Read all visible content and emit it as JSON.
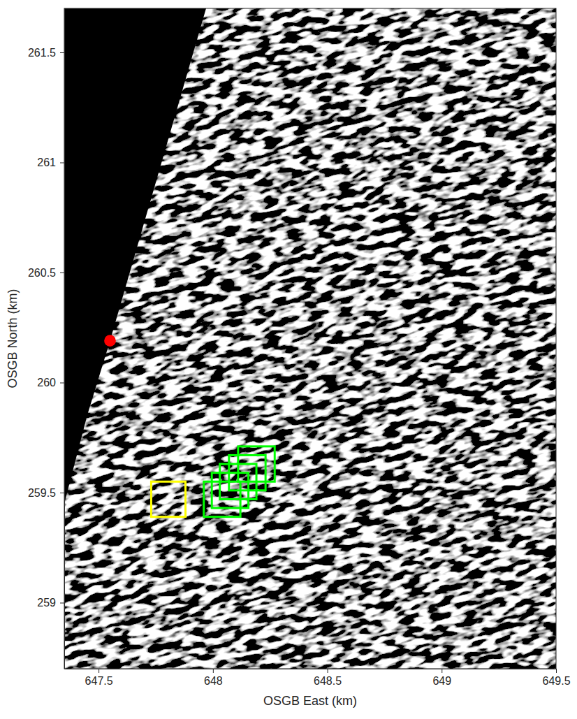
{
  "chart_data": {
    "type": "image",
    "xlabel": "OSGB East (km)",
    "ylabel": "OSGB North (km)",
    "xlim": [
      647.35,
      649.5
    ],
    "ylim": [
      258.7,
      261.7
    ],
    "xticks": [
      647.5,
      648,
      648.5,
      649,
      649.5
    ],
    "yticks": [
      259,
      259.5,
      260,
      260.5,
      261,
      261.5
    ],
    "grid": false,
    "no_data_region": {
      "x": [
        647.35,
        647.97,
        647.55,
        647.45,
        647.35
      ],
      "y": [
        261.7,
        261.7,
        260.19,
        259.85,
        259.45
      ],
      "color": "#000000"
    },
    "points": [
      {
        "x": 647.55,
        "y": 260.19,
        "color": "#ff0000",
        "marker": "circle"
      }
    ],
    "boxes": [
      {
        "x0": 647.73,
        "x1": 647.88,
        "y0": 259.39,
        "y1": 259.55,
        "color": "#ffff00"
      },
      {
        "x0": 647.96,
        "x1": 648.12,
        "y0": 259.39,
        "y1": 259.55,
        "color": "#00ff00"
      },
      {
        "x0": 647.995,
        "x1": 648.155,
        "y0": 259.43,
        "y1": 259.59,
        "color": "#00ff00"
      },
      {
        "x0": 648.03,
        "x1": 648.19,
        "y0": 259.47,
        "y1": 259.63,
        "color": "#00ff00"
      },
      {
        "x0": 648.07,
        "x1": 648.23,
        "y0": 259.51,
        "y1": 259.67,
        "color": "#00ff00"
      },
      {
        "x0": 648.11,
        "x1": 648.27,
        "y0": 259.55,
        "y1": 259.71,
        "color": "#00ff00"
      }
    ]
  }
}
